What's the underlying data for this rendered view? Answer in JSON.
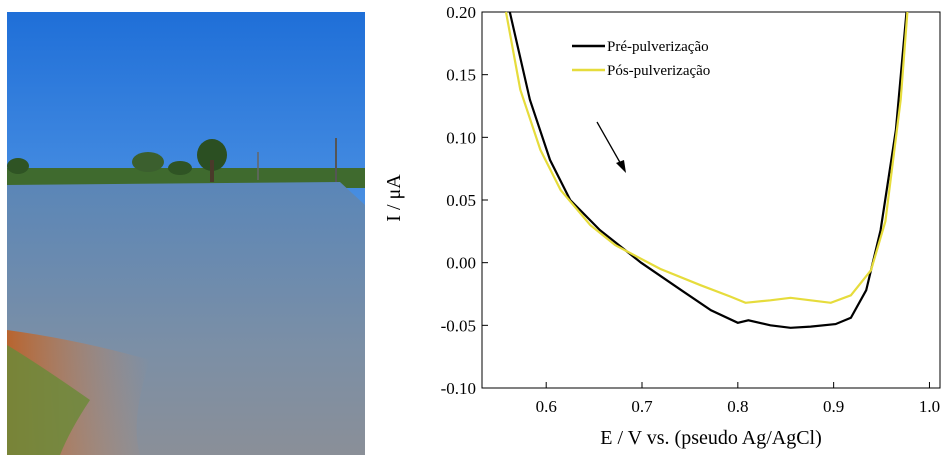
{
  "chart_data": {
    "type": "line",
    "xlabel": "E / V vs. (pseudo Ag/AgCl)",
    "ylabel": "I / μA",
    "xlim": [
      0.533,
      1.011
    ],
    "ylim": [
      -0.1,
      0.2
    ],
    "xticks": [
      0.6,
      0.7,
      0.8,
      0.9,
      {
        "value": 1.0,
        "label": "1.0"
      }
    ],
    "yticks": [
      {
        "value": 0.2,
        "label": "0.20"
      },
      {
        "value": 0.15,
        "label": "0.15"
      },
      {
        "value": 0.1,
        "label": "0.10"
      },
      {
        "value": 0.05,
        "label": "0.05"
      },
      {
        "value": 0.0,
        "label": "0.00"
      },
      {
        "value": -0.05,
        "label": "-0.05"
      },
      {
        "value": -0.1,
        "label": "-0.10"
      }
    ],
    "series": [
      {
        "name": "Pré-pulverização",
        "color": "#000000",
        "x": [
          0.562,
          0.583,
          0.604,
          0.625,
          0.656,
          0.699,
          0.741,
          0.772,
          0.8,
          0.811,
          0.834,
          0.855,
          0.876,
          0.902,
          0.918,
          0.934,
          0.949,
          0.965,
          0.976
        ],
        "values": [
          0.2,
          0.13,
          0.082,
          0.05,
          0.026,
          0.0,
          -0.022,
          -0.038,
          -0.048,
          -0.046,
          -0.05,
          -0.052,
          -0.051,
          -0.049,
          -0.044,
          -0.022,
          0.026,
          0.106,
          0.2
        ]
      },
      {
        "name": "Pós-pulverização",
        "color": "#e6dc3c",
        "x": [
          0.558,
          0.573,
          0.594,
          0.615,
          0.646,
          0.672,
          0.719,
          0.761,
          0.792,
          0.808,
          0.834,
          0.855,
          0.876,
          0.897,
          0.918,
          0.939,
          0.954,
          0.97,
          0.977
        ],
        "values": [
          0.2,
          0.138,
          0.09,
          0.058,
          0.03,
          0.014,
          -0.005,
          -0.018,
          -0.027,
          -0.032,
          -0.03,
          -0.028,
          -0.03,
          -0.032,
          -0.026,
          -0.006,
          0.033,
          0.13,
          0.2
        ]
      }
    ]
  }
}
